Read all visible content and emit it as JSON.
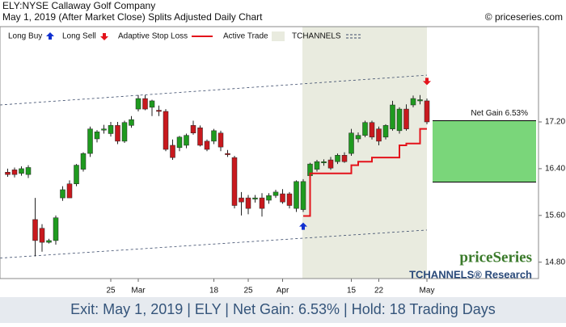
{
  "header": {
    "title": "ELY:NYSE Callaway Golf Company",
    "subtitle": "May 1, 2019 (After Market Close)  Splits Adjusted Daily Chart",
    "copyright": "© priceseries.com"
  },
  "chart_data": {
    "type": "candlestick",
    "categories": [
      null,
      null,
      null,
      null,
      null,
      null,
      null,
      null,
      null,
      null,
      null,
      null,
      null,
      null,
      null,
      "25",
      null,
      null,
      null,
      "Mar",
      null,
      null,
      null,
      null,
      null,
      null,
      null,
      null,
      null,
      null,
      "18",
      null,
      null,
      null,
      null,
      "25",
      null,
      null,
      null,
      null,
      "Apr",
      null,
      null,
      null,
      null,
      null,
      null,
      null,
      null,
      null,
      "15",
      null,
      null,
      null,
      "22",
      null,
      null,
      null,
      null,
      null,
      null,
      "May"
    ],
    "open": [
      16.34,
      16.38,
      16.32,
      16.3,
      15.53,
      15.38,
      15.14,
      15.17,
      15.9,
      16.14,
      16.14,
      16.39,
      16.66,
      16.91,
      17.06,
      17.0,
      17.14,
      16.87,
      17.14,
      17.42,
      17.6,
      17.45,
      17.4,
      17.38,
      16.8,
      16.76,
      16.8,
      17.14,
      17.1,
      16.87,
      16.87,
      17.01,
      16.66,
      16.59,
      15.9,
      15.9,
      15.88,
      15.9,
      15.86,
      15.94,
      15.97,
      15.97,
      15.72,
      15.7,
      16.28,
      16.39,
      16.5,
      16.55,
      16.52,
      16.63,
      16.66,
      16.91,
      16.97,
      17.19,
      17.08,
      16.94,
      17.08,
      17.05,
      17.42,
      17.49,
      17.56,
      17.56
    ],
    "high": [
      16.4,
      16.42,
      16.44,
      16.46,
      15.9,
      15.45,
      15.2,
      15.6,
      16.1,
      16.2,
      16.48,
      16.68,
      17.12,
      17.06,
      17.15,
      17.2,
      17.2,
      17.22,
      17.3,
      17.66,
      17.66,
      17.58,
      17.48,
      17.42,
      16.9,
      16.96,
      17.0,
      17.22,
      17.14,
      16.9,
      17.08,
      17.05,
      16.72,
      16.62,
      16.0,
      15.95,
      15.95,
      15.98,
      15.98,
      16.04,
      16.05,
      16.0,
      16.2,
      16.22,
      16.5,
      16.55,
      16.56,
      16.6,
      16.66,
      16.68,
      17.08,
      17.02,
      17.22,
      17.22,
      17.12,
      17.16,
      17.56,
      17.45,
      17.5,
      17.65,
      17.66,
      17.6
    ],
    "low": [
      16.26,
      16.25,
      16.28,
      16.24,
      14.9,
      14.98,
      15.12,
      15.1,
      15.85,
      15.9,
      16.1,
      16.35,
      16.6,
      16.85,
      17.0,
      16.95,
      16.82,
      16.84,
      17.1,
      17.38,
      17.4,
      17.3,
      17.3,
      16.7,
      16.55,
      16.7,
      16.75,
      16.98,
      16.78,
      16.7,
      16.82,
      16.7,
      16.6,
      15.72,
      15.6,
      15.62,
      15.82,
      15.58,
      15.8,
      15.9,
      15.8,
      15.72,
      15.66,
      15.66,
      16.25,
      16.35,
      16.45,
      16.38,
      16.48,
      16.5,
      16.62,
      16.85,
      16.94,
      16.9,
      16.8,
      16.9,
      17.05,
      17.0,
      17.05,
      17.45,
      17.5,
      17.16
    ],
    "close": [
      16.3,
      16.3,
      16.4,
      16.42,
      15.17,
      15.14,
      15.17,
      15.56,
      16.04,
      15.9,
      16.46,
      16.66,
      17.08,
      17.03,
      17.08,
      17.14,
      16.87,
      17.19,
      17.24,
      17.6,
      17.42,
      17.56,
      17.38,
      16.73,
      16.59,
      16.94,
      16.97,
      17.01,
      16.8,
      16.73,
      17.05,
      16.77,
      16.64,
      15.77,
      15.83,
      15.72,
      15.9,
      15.72,
      15.94,
      16.0,
      15.83,
      15.77,
      16.18,
      16.18,
      16.48,
      16.52,
      16.52,
      16.41,
      16.63,
      16.52,
      17.01,
      16.97,
      17.19,
      16.94,
      16.87,
      17.14,
      17.49,
      17.42,
      17.08,
      17.6,
      17.58,
      17.2
    ],
    "up_color": "#1f9a1f",
    "down_color": "#c8191e",
    "stop_loss": {
      "name": "Adaptive Stop Loss",
      "color": "#e3131b",
      "values": [
        null,
        null,
        null,
        null,
        null,
        null,
        null,
        null,
        null,
        null,
        null,
        null,
        null,
        null,
        null,
        null,
        null,
        null,
        null,
        null,
        null,
        null,
        null,
        null,
        null,
        null,
        null,
        null,
        null,
        null,
        null,
        null,
        null,
        null,
        null,
        null,
        null,
        null,
        null,
        null,
        null,
        null,
        null,
        15.59,
        16.32,
        16.32,
        16.32,
        16.32,
        16.32,
        16.32,
        16.46,
        16.52,
        16.52,
        16.59,
        16.59,
        16.59,
        16.59,
        16.8,
        16.83,
        16.83,
        17.08,
        17.08
      ]
    },
    "long_buy": {
      "name": "Long Buy",
      "index": 43,
      "value": 15.41,
      "color": "#1030d0"
    },
    "long_sell": {
      "name": "Long Sell",
      "index": 61,
      "value": 17.9,
      "color": "#e3131b"
    },
    "active_trade": {
      "name": "Active Trade",
      "color": "#e9ebdf"
    },
    "channel": {
      "name": "TCHANNELS",
      "color": "#3a4a6a",
      "upper": [
        17.49,
        18.0
      ],
      "lower": [
        14.87,
        15.35
      ]
    },
    "net_gain": {
      "label": "Net Gain 6.53%",
      "from": 16.17,
      "to": 17.22,
      "color": "#7ad67a"
    },
    "ylim": [
      14.52,
      18.83
    ],
    "yticks": [
      {
        "value": 14.8,
        "label": "14.80"
      },
      {
        "value": 15.6,
        "label": "15.60"
      },
      {
        "value": 16.4,
        "label": "16.40"
      },
      {
        "value": 17.2,
        "label": "17.20"
      }
    ]
  },
  "watermark": {
    "brand": "priceSeries",
    "research": "TCHANNELS® Research"
  },
  "footer": "Exit: May 1, 2019 | ELY | Net Gain: 6.53% | Hold: 18 Trading Days"
}
